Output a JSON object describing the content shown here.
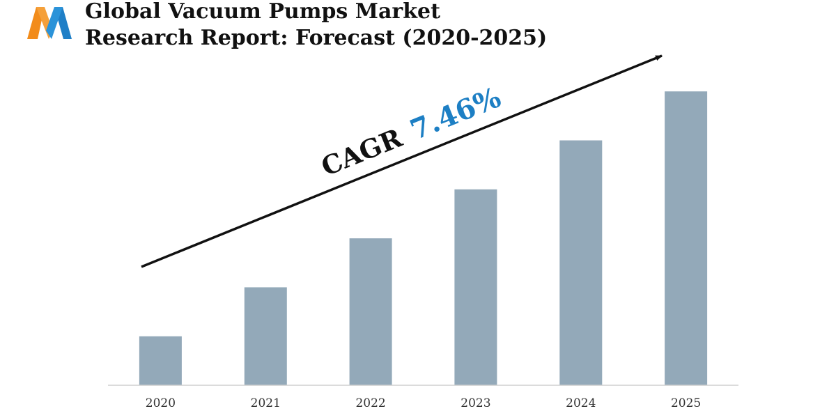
{
  "header": {
    "title_line1": "Global Vacuum Pumps Market",
    "title_line2": "Research Report: Forecast (2020-2025)",
    "logo_icon": "mw-logo-icon"
  },
  "annotation": {
    "label": "CAGR",
    "value": "7.46%",
    "label_color": "#111111",
    "value_color": "#1d7fc4"
  },
  "chart_data": {
    "type": "bar",
    "categories": [
      "2020",
      "2021",
      "2022",
      "2023",
      "2024",
      "2025"
    ],
    "values": [
      1,
      2,
      3,
      4,
      5,
      6
    ],
    "ylim": [
      0,
      6.5
    ],
    "title": "",
    "xlabel": "",
    "ylabel": "",
    "grid": false,
    "legend": "none",
    "bar_color": "#93a9b9",
    "axis_color": "#cfcfcf"
  }
}
